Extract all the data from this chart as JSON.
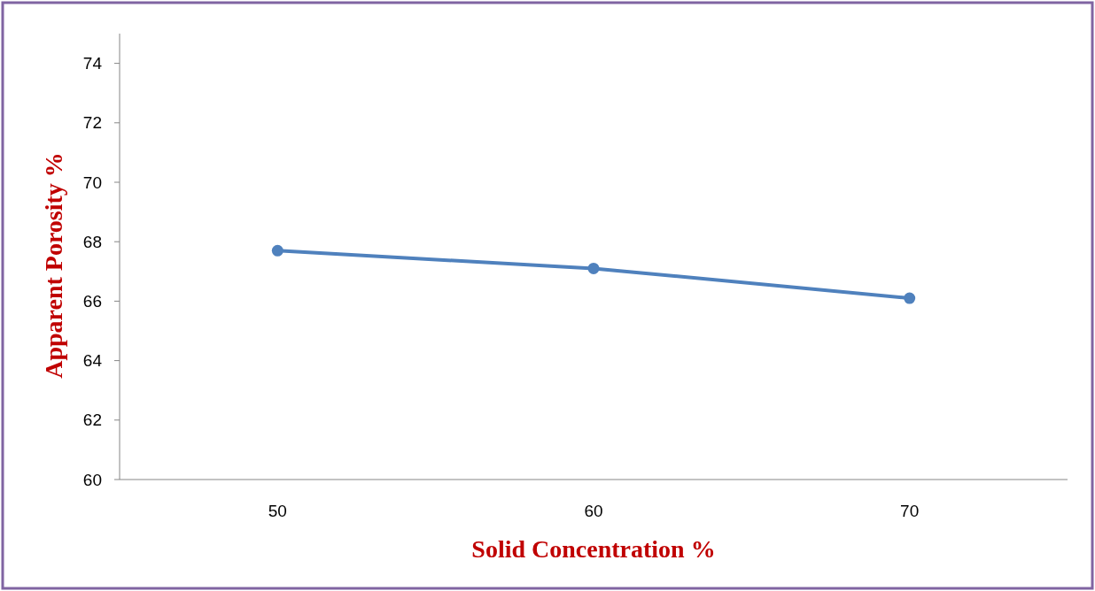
{
  "chart_data": {
    "type": "line",
    "xlabel": "Solid Concentration %",
    "ylabel": "Apparent Porosity %",
    "categories": [
      "50",
      "60",
      "70"
    ],
    "series": [
      {
        "color": "#4f81bd",
        "values": [
          67.7,
          67.1,
          66.1
        ]
      }
    ],
    "ylim": [
      60,
      75
    ],
    "yticks": [
      60,
      62,
      64,
      66,
      68,
      70,
      72,
      74
    ],
    "grid": false,
    "marker": "circle",
    "line_style": "solid"
  }
}
